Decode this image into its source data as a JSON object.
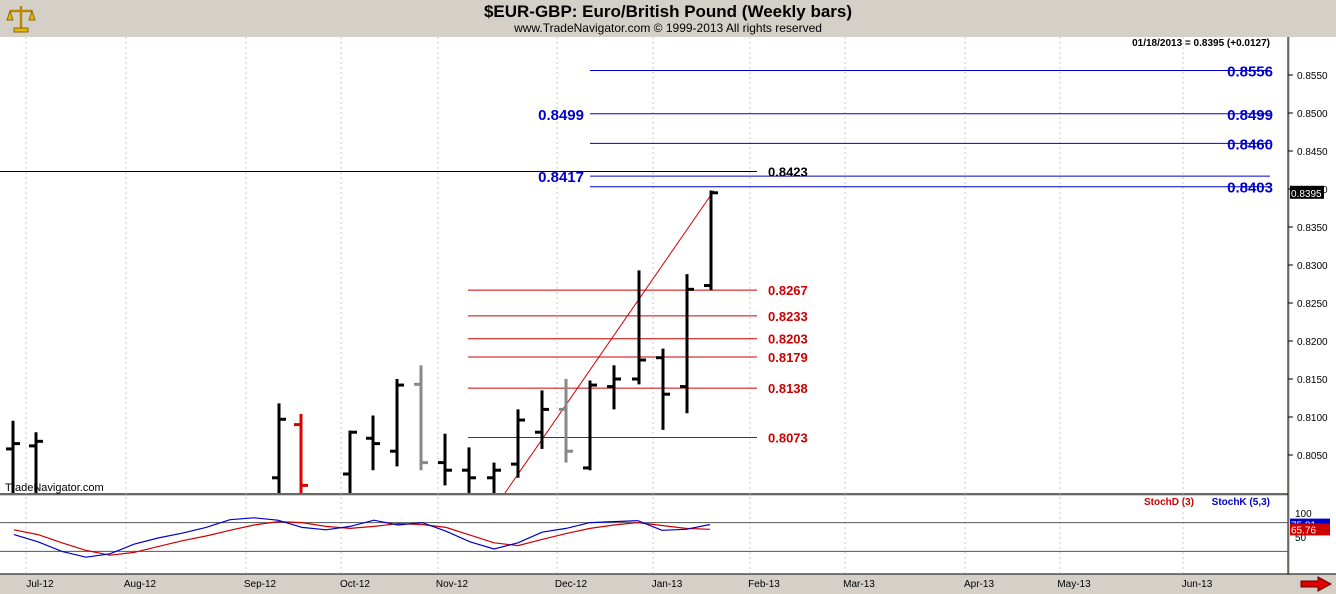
{
  "header": {
    "title": "$EUR-GBP:  Euro/British Pound  (Weekly bars)",
    "subtitle": "www.TradeNavigator.com © 1999-2013 All rights reserved",
    "logo_icon": "trade-navigator-scale-icon"
  },
  "price_panel": {
    "last_quote": "01/18/2013 = 0.8395 (+0.0127)",
    "current_price_label": "0.8395",
    "watermark": "TradeNavigator.com",
    "y_ticks": [
      "0.8550",
      "0.8500",
      "0.8450",
      "0.8400",
      "0.8350",
      "0.8300",
      "0.8250",
      "0.8200",
      "0.8150",
      "0.8100",
      "0.8050"
    ]
  },
  "stoch_panel": {
    "legend_d": "StochD (3)",
    "legend_k": "StochK (5,3)",
    "y_ticks": [
      "100",
      "50"
    ],
    "stochk_last": "75.81",
    "stochd_last": "65.76"
  },
  "x_axis": {
    "labels": [
      "Jul-12",
      "Aug-12",
      "Sep-12",
      "Oct-12",
      "Nov-12",
      "Dec-12",
      "Jan-13",
      "Feb-13",
      "Mar-13",
      "Apr-13",
      "May-13",
      "Jun-13"
    ]
  },
  "colors": {
    "background": "#ffffff",
    "frame": "#d4d0c8",
    "bar_up": "#000000",
    "bar_alt": "#888888",
    "bar_red": "#dd0000",
    "fib_extension": "#0000cc",
    "fib_retracement": "#cc0000",
    "stoch_k": "#0000cc",
    "stoch_d": "#cc0000"
  },
  "chart_data": {
    "type": "ohlc",
    "title": "$EUR-GBP:  Euro/British Pound  (Weekly bars)",
    "bar_interval": "weekly",
    "bars": [
      {
        "open": 0.8058,
        "high": 0.8095,
        "low": 0.798,
        "close": 0.8065,
        "color": "black"
      },
      {
        "open": 0.8062,
        "high": 0.808,
        "low": 0.799,
        "close": 0.8068,
        "color": "black"
      },
      {
        "open": 0.802,
        "high": 0.8118,
        "low": 0.8,
        "close": 0.8097,
        "color": "black"
      },
      {
        "open": 0.809,
        "high": 0.8104,
        "low": 0.8,
        "close": 0.801,
        "color": "red"
      },
      {
        "open": 0.8025,
        "high": 0.8082,
        "low": 0.7995,
        "close": 0.808,
        "color": "black"
      },
      {
        "open": 0.8072,
        "high": 0.8102,
        "low": 0.803,
        "close": 0.8065,
        "color": "black"
      },
      {
        "open": 0.8055,
        "high": 0.815,
        "low": 0.8035,
        "close": 0.8142,
        "color": "black"
      },
      {
        "open": 0.8143,
        "high": 0.8168,
        "low": 0.803,
        "close": 0.804,
        "color": "gray"
      },
      {
        "open": 0.804,
        "high": 0.8078,
        "low": 0.801,
        "close": 0.803,
        "color": "black"
      },
      {
        "open": 0.803,
        "high": 0.806,
        "low": 0.8,
        "close": 0.802,
        "color": "black"
      },
      {
        "open": 0.802,
        "high": 0.804,
        "low": 0.7995,
        "close": 0.803,
        "color": "black"
      },
      {
        "open": 0.8038,
        "high": 0.811,
        "low": 0.802,
        "close": 0.8096,
        "color": "black"
      },
      {
        "open": 0.808,
        "high": 0.8135,
        "low": 0.8058,
        "close": 0.811,
        "color": "black"
      },
      {
        "open": 0.811,
        "high": 0.815,
        "low": 0.804,
        "close": 0.8055,
        "color": "gray"
      },
      {
        "open": 0.8033,
        "high": 0.8148,
        "low": 0.803,
        "close": 0.8142,
        "color": "black"
      },
      {
        "open": 0.814,
        "high": 0.8168,
        "low": 0.811,
        "close": 0.815,
        "color": "black"
      },
      {
        "open": 0.815,
        "high": 0.8293,
        "low": 0.8143,
        "close": 0.8175,
        "color": "black"
      },
      {
        "open": 0.8178,
        "high": 0.819,
        "low": 0.8083,
        "close": 0.813,
        "color": "black"
      },
      {
        "open": 0.814,
        "high": 0.8288,
        "low": 0.8105,
        "close": 0.8268,
        "color": "black"
      },
      {
        "open": 0.8273,
        "high": 0.8398,
        "low": 0.8267,
        "close": 0.8395,
        "color": "black"
      }
    ],
    "fib_extension_levels": [
      0.8556,
      0.8499,
      0.846,
      0.8417,
      0.8403
    ],
    "fib_extension_labels": [
      "0.8556",
      "0.8499",
      "0.8460",
      "0.8403"
    ],
    "fib_extension_left_labels": [
      "0.8499",
      "0.8417"
    ],
    "fib_retracement_levels": [
      0.8267,
      0.8233,
      0.8203,
      0.8179,
      0.8138,
      0.8073
    ],
    "fib_retracement_labels": [
      "0.8267",
      "0.8233",
      "0.8203",
      "0.8179",
      "0.8138",
      "0.8073"
    ],
    "high_marker": {
      "value": 0.8423,
      "label": "0.8423"
    },
    "trend_line": {
      "from": 0.8,
      "to": 0.8398
    },
    "ylim": [
      0.8,
      0.86
    ],
    "stochastic": {
      "ylim": [
        0,
        100
      ],
      "reference_levels": [
        80,
        20
      ],
      "stoch_k": [
        55,
        40,
        20,
        8,
        15,
        35,
        48,
        58,
        70,
        86,
        90,
        85,
        70,
        65,
        72,
        85,
        75,
        80,
        62,
        40,
        25,
        38,
        60,
        68,
        80,
        82,
        84,
        64,
        66,
        76
      ],
      "stoch_d": [
        65,
        55,
        38,
        22,
        12,
        18,
        30,
        42,
        52,
        64,
        75,
        82,
        80,
        72,
        68,
        72,
        78,
        76,
        70,
        54,
        38,
        32,
        45,
        57,
        68,
        75,
        80,
        74,
        68,
        66
      ]
    }
  }
}
